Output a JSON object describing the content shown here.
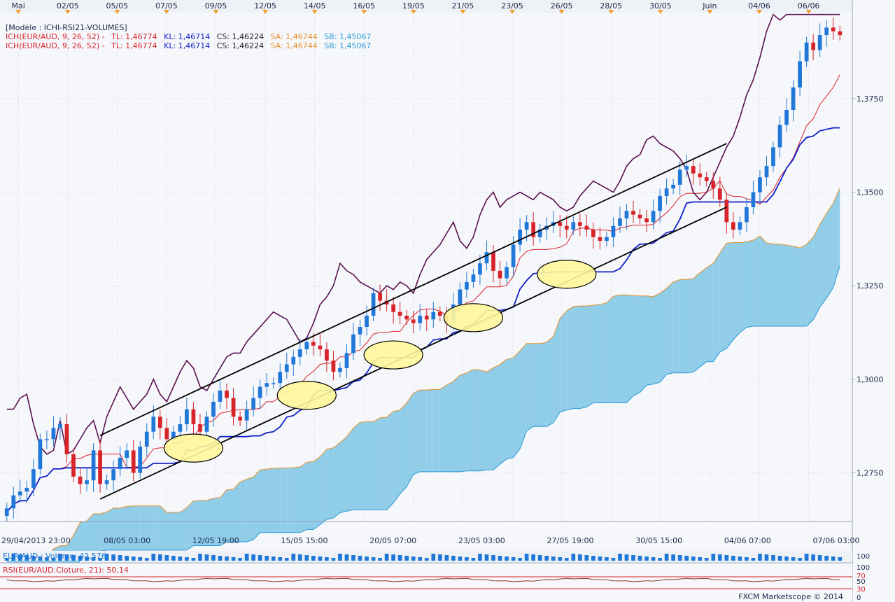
{
  "chart_data": {
    "type": "candlestick",
    "instrument": "EUR/AUD",
    "top_axis_labels": [
      "Mai",
      "02/05",
      "05/05",
      "07/05",
      "09/05",
      "12/05",
      "14/05",
      "16/05",
      "19/05",
      "21/05",
      "23/05",
      "26/05",
      "28/05",
      "30/05",
      "Juin",
      "04/06",
      "06/06"
    ],
    "bottom_axis_labels": [
      "29/04/2013 23:00",
      "08/05 03:00",
      "12/05 19:00",
      "15/05 15:00",
      "20/05 07:00",
      "23/05 03:00",
      "27/05 19:00",
      "30/05 15:00",
      "04/06 07:00",
      "07/06 03:00"
    ],
    "y_ticks": [
      "1,2750",
      "1,3000",
      "1,3250",
      "1,3500",
      "1,3750"
    ],
    "y_tick_values": [
      1.275,
      1.3,
      1.325,
      1.35,
      1.375
    ],
    "ylim": [
      1.262,
      1.398
    ],
    "legend": {
      "model": "[Modèle : ICHI-RSI21-VOLUMES]",
      "rows": [
        {
          "name": "ICH(EUR/AUD, 9, 26, 52) -",
          "tl": "TL: 1,46774",
          "kl": "KL: 1,46714",
          "cs": "CS: 1,46224",
          "sa": "SA: 1,46744",
          "sb": "SB: 1,45067"
        },
        {
          "name": "ICH(EUR/AUD, 9, 26, 52) -",
          "tl": "TL: 1,46774",
          "kl": "KL: 1,46714",
          "cs": "CS: 1,46224",
          "sa": "SA: 1,46744",
          "sb": "SB: 1,45067"
        }
      ]
    },
    "close_series": [
      1.2655,
      1.269,
      1.27,
      1.271,
      1.276,
      1.284,
      1.284,
      1.287,
      1.288,
      1.28,
      1.274,
      1.272,
      1.273,
      1.281,
      1.272,
      1.273,
      1.276,
      1.279,
      1.281,
      1.275,
      1.282,
      1.286,
      1.29,
      1.287,
      1.284,
      1.286,
      1.288,
      1.292,
      1.288,
      1.286,
      1.29,
      1.294,
      1.297,
      1.295,
      1.29,
      1.289,
      1.292,
      1.295,
      1.298,
      1.299,
      1.299,
      1.302,
      1.304,
      1.306,
      1.308,
      1.31,
      1.309,
      1.308,
      1.305,
      1.302,
      1.303,
      1.307,
      1.312,
      1.314,
      1.317,
      1.323,
      1.321,
      1.32,
      1.318,
      1.317,
      1.316,
      1.315,
      1.317,
      1.316,
      1.318,
      1.317,
      1.315,
      1.32,
      1.324,
      1.326,
      1.328,
      1.331,
      1.334,
      1.329,
      1.327,
      1.33,
      1.336,
      1.34,
      1.342,
      1.338,
      1.34,
      1.341,
      1.342,
      1.341,
      1.34,
      1.342,
      1.341,
      1.34,
      1.338,
      1.337,
      1.338,
      1.341,
      1.343,
      1.345,
      1.344,
      1.343,
      1.342,
      1.345,
      1.349,
      1.351,
      1.352,
      1.356,
      1.357,
      1.355,
      1.354,
      1.353,
      1.351,
      1.348,
      1.342,
      1.34,
      1.342,
      1.346,
      1.35,
      1.354,
      1.357,
      1.362,
      1.368,
      1.372,
      1.378,
      1.385,
      1.39,
      1.388,
      1.392,
      1.394,
      1.393,
      1.392
    ],
    "annotations": {
      "channel": "rising trend channel",
      "highlighted_touches": 6
    },
    "subpanels": {
      "volume": {
        "label": "EUR/AUD : Volume: 42,576",
        "ylim_label": "100"
      },
      "rsi": {
        "label": "RSI(EUR/AUD.Cloture, 21): 50,14",
        "levels": [
          "70",
          "50",
          "30",
          "0"
        ],
        "max_label": "100"
      }
    },
    "footer": "FXCM Marketscope © 2014"
  },
  "colors": {
    "bull": "#1f78d8",
    "bear": "#d8232a",
    "tenkan": "#d8232a",
    "kijun": "#1020c8",
    "chikou": "#5a1050",
    "cloud_bull": "#8fcde8",
    "cloud_bear": "#f7c9a0",
    "channel": "#000000",
    "highlight": "#fff79a"
  }
}
